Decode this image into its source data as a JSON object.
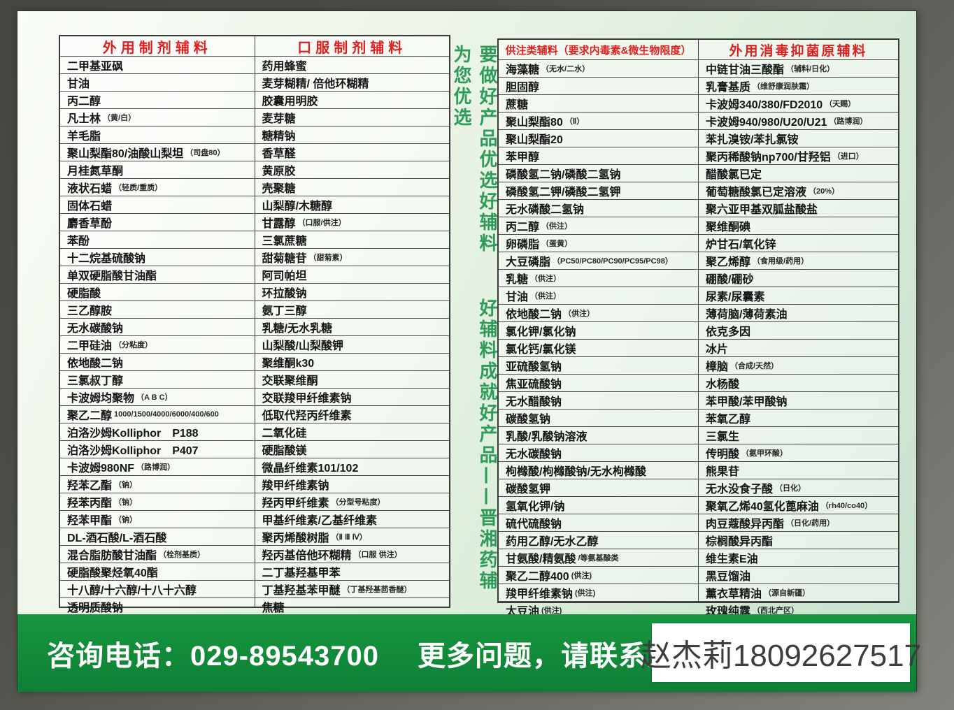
{
  "colors": {
    "header_red": "#dd1f1f",
    "bar_green": "#108a3e",
    "slogan_green": "#2f9b58",
    "page_green_tint": "#c7e1ce"
  },
  "slogan": {
    "part1": "要做好产品优选好辅料",
    "part2": "好辅料成就好产品——晋湘药辅为您优选"
  },
  "tables": [
    {
      "header": "外用制剂辅料",
      "items": [
        {
          "n": "二甲基亚砜"
        },
        {
          "n": "甘油"
        },
        {
          "n": "丙二醇"
        },
        {
          "n": "凡士林",
          "s": "（黄/白）"
        },
        {
          "n": "羊毛脂"
        },
        {
          "n": "聚山梨酯80/油酸山梨坦",
          "s": "（司盘80）"
        },
        {
          "n": "月桂氮草酮"
        },
        {
          "n": "液状石蜡",
          "s": "（轻质/重质）"
        },
        {
          "n": "固体石蜡"
        },
        {
          "n": "麝香草酚"
        },
        {
          "n": "苯酚"
        },
        {
          "n": "十二烷基硫酸钠"
        },
        {
          "n": "单双硬脂酸甘油酯"
        },
        {
          "n": "硬脂酸"
        },
        {
          "n": "三乙醇胺"
        },
        {
          "n": "无水碳酸钠"
        },
        {
          "n": "二甲硅油",
          "s": "（分粘度）"
        },
        {
          "n": "依地酸二钠"
        },
        {
          "n": "三氯叔丁醇"
        },
        {
          "n": "卡波姆均聚物",
          "s": "（A B C）"
        },
        {
          "n": "聚乙二醇",
          "s": "1000/1500/4000/6000/400/600"
        },
        {
          "n": "泊洛沙姆Kolliphor　P188"
        },
        {
          "n": "泊洛沙姆Kolliphor　P407"
        },
        {
          "n": "卡波姆980NF",
          "s": "（路博润）"
        },
        {
          "n": "羟苯乙酯",
          "s": "（钠）"
        },
        {
          "n": "羟苯丙酯",
          "s": "（钠）"
        },
        {
          "n": "羟苯甲酯",
          "s": "（钠）"
        },
        {
          "n": "DL-酒石酸/L-酒石酸"
        },
        {
          "n": "混合脂肪酸甘油酯",
          "s": "（栓剂基质）"
        },
        {
          "n": "硬脂酸聚烃氧40酯"
        },
        {
          "n": "十八醇/十六醇/十八十六醇"
        },
        {
          "n": "透明质酸钠"
        }
      ]
    },
    {
      "header": "口服制剂辅料",
      "items": [
        {
          "n": "药用蜂蜜"
        },
        {
          "n": "麦芽糊精/ 倍他环糊精"
        },
        {
          "n": "胶囊用明胶"
        },
        {
          "n": "麦芽糖"
        },
        {
          "n": "糖精钠"
        },
        {
          "n": "香草醛"
        },
        {
          "n": "黄原胶"
        },
        {
          "n": "壳聚糖"
        },
        {
          "n": "山梨醇/木糖醇"
        },
        {
          "n": "甘露醇",
          "s": "（口服/供注）"
        },
        {
          "n": "三氯蔗糖"
        },
        {
          "n": "甜菊糖苷",
          "s": "（甜菊素）"
        },
        {
          "n": "阿司帕坦"
        },
        {
          "n": "环拉酸钠"
        },
        {
          "n": "氨丁三醇"
        },
        {
          "n": "乳糖/无水乳糖"
        },
        {
          "n": "山梨酸/山梨酸钾"
        },
        {
          "n": "聚维酮k30"
        },
        {
          "n": "交联聚维酮"
        },
        {
          "n": "交联羧甲纤维素钠"
        },
        {
          "n": "低取代羟丙纤维素"
        },
        {
          "n": "二氧化硅"
        },
        {
          "n": "硬脂酸镁"
        },
        {
          "n": "微晶纤维素101/102"
        },
        {
          "n": "羧甲纤维素钠"
        },
        {
          "n": "羟丙甲纤维素",
          "s": "（分型号粘度）"
        },
        {
          "n": "甲基纤维素/乙基纤维素"
        },
        {
          "n": "聚丙烯酸树脂",
          "s": "（Ⅱ Ⅲ Ⅳ）"
        },
        {
          "n": "羟丙基倍他环糊精",
          "s": "（口服 供注）"
        },
        {
          "n": "二丁基羟基甲苯"
        },
        {
          "n": "丁基羟基苯甲醚",
          "s": "（丁基羟基茴香醚）"
        },
        {
          "n": "焦糖"
        }
      ]
    },
    {
      "header": "供注类辅料（要求内毒素&微生物限度）",
      "items": [
        {
          "n": "海藻糖",
          "s": "（无水/二水）"
        },
        {
          "n": "胆固醇"
        },
        {
          "n": "蔗糖"
        },
        {
          "n": "聚山梨酯80",
          "s": "（Ⅱ）"
        },
        {
          "n": "聚山梨酯20"
        },
        {
          "n": "苯甲醇"
        },
        {
          "n": "磷酸氢二钠/磷酸二氢钠"
        },
        {
          "n": "磷酸氢二钾/磷酸二氢钾"
        },
        {
          "n": "无水磷酸二氢钠"
        },
        {
          "n": "丙二醇",
          "s": "（供注）"
        },
        {
          "n": "卵磷脂",
          "s": "（蛋黄）"
        },
        {
          "n": "大豆磷脂",
          "s": "（PC50/PC80/PC90/PC95/PC98）"
        },
        {
          "n": "乳糖",
          "s": "（供注）"
        },
        {
          "n": "甘油",
          "s": "（供注）"
        },
        {
          "n": "依地酸二钠",
          "s": "（供注）"
        },
        {
          "n": "氯化钾/氯化钠"
        },
        {
          "n": "氯化钙/氯化镁"
        },
        {
          "n": "亚硫酸氢钠"
        },
        {
          "n": "焦亚硫酸钠"
        },
        {
          "n": "无水醋酸钠"
        },
        {
          "n": "碳酸氢钠"
        },
        {
          "n": "乳酸/乳酸钠溶液"
        },
        {
          "n": "无水碳酸钠"
        },
        {
          "n": "枸橼酸/枸橼酸钠/无水枸橼酸"
        },
        {
          "n": "碳酸氢钾"
        },
        {
          "n": "氢氧化钾/钠"
        },
        {
          "n": "硫代硫酸钠"
        },
        {
          "n": "药用乙醇/无水乙醇"
        },
        {
          "n": "甘氨酸/精氨酸",
          "s": "/等氨基酸类"
        },
        {
          "n": "聚乙二醇400",
          "s": "(供注)"
        },
        {
          "n": "羧甲纤维素钠",
          "s": "(供注)"
        },
        {
          "n": "太豆油",
          "s": "(供注)"
        }
      ]
    },
    {
      "header": "外用消毒抑菌原辅料",
      "items": [
        {
          "n": "中链甘油三酸酯",
          "s": "（辅料/日化）"
        },
        {
          "n": "乳膏基质",
          "s": "（维舒康润肤霜）"
        },
        {
          "n": "卡波姆340/380/FD2010",
          "s": "（天赐）"
        },
        {
          "n": "卡波姆940/980/U20/U21",
          "s": "（路博润）"
        },
        {
          "n": "苯扎溴铵/苯扎氯铵"
        },
        {
          "n": "聚丙稀酸钠np700/甘羟铝",
          "s": "（进口）"
        },
        {
          "n": "醋酸氯已定"
        },
        {
          "n": "葡萄糖酸氯已定溶液",
          "s": "（20%）"
        },
        {
          "n": "聚六亚甲基双胍盐酸盐"
        },
        {
          "n": "聚维酮碘"
        },
        {
          "n": "炉甘石/氧化锌"
        },
        {
          "n": "聚乙烯醇",
          "s": "（食用级/药用）"
        },
        {
          "n": "硼酸/硼砂"
        },
        {
          "n": "尿素/尿囊素"
        },
        {
          "n": "薄荷脑/薄荷素油"
        },
        {
          "n": "依克多因"
        },
        {
          "n": "冰片"
        },
        {
          "n": "樟脑",
          "s": "（合成/天然）"
        },
        {
          "n": "水杨酸"
        },
        {
          "n": "苯甲酸/苯甲酸钠"
        },
        {
          "n": "苯氧乙醇"
        },
        {
          "n": "三氯生"
        },
        {
          "n": "传明酸",
          "s": "（氨甲环酸）"
        },
        {
          "n": "熊果苷"
        },
        {
          "n": "无水没食子酸",
          "s": "（日化）"
        },
        {
          "n": "聚氧乙烯40氢化蓖麻油",
          "s": "（rh40/co40）"
        },
        {
          "n": "肉豆蔻酸异丙酯",
          "s": "（日化/药用）"
        },
        {
          "n": "棕榈酸异丙酯"
        },
        {
          "n": "维生素E油"
        },
        {
          "n": "黑豆馏油"
        },
        {
          "n": "薰衣草精油",
          "s": "（源自新疆）"
        },
        {
          "n": "玫瑰纯露",
          "s": "（西北产区）"
        }
      ]
    }
  ],
  "footer": {
    "phone_label": "咨询电话：",
    "phone_number": "029-89543700",
    "more_info": "更多问题，请联系业务人员",
    "contact": "赵杰莉18092627517"
  }
}
